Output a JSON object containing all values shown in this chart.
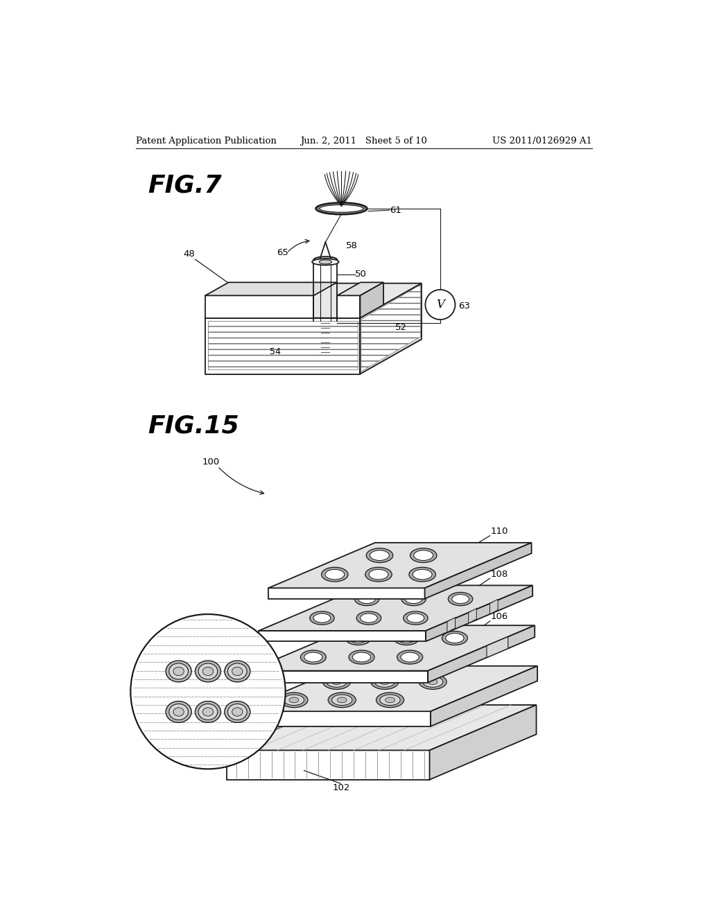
{
  "header_left": "Patent Application Publication",
  "header_mid": "Jun. 2, 2011   Sheet 5 of 10",
  "header_right": "US 2011/0126929 A1",
  "fig7_label": "FIG.7",
  "fig15_label": "FIG.15",
  "bg_color": "#ffffff",
  "line_color": "#1a1a1a",
  "text_color": "#000000"
}
